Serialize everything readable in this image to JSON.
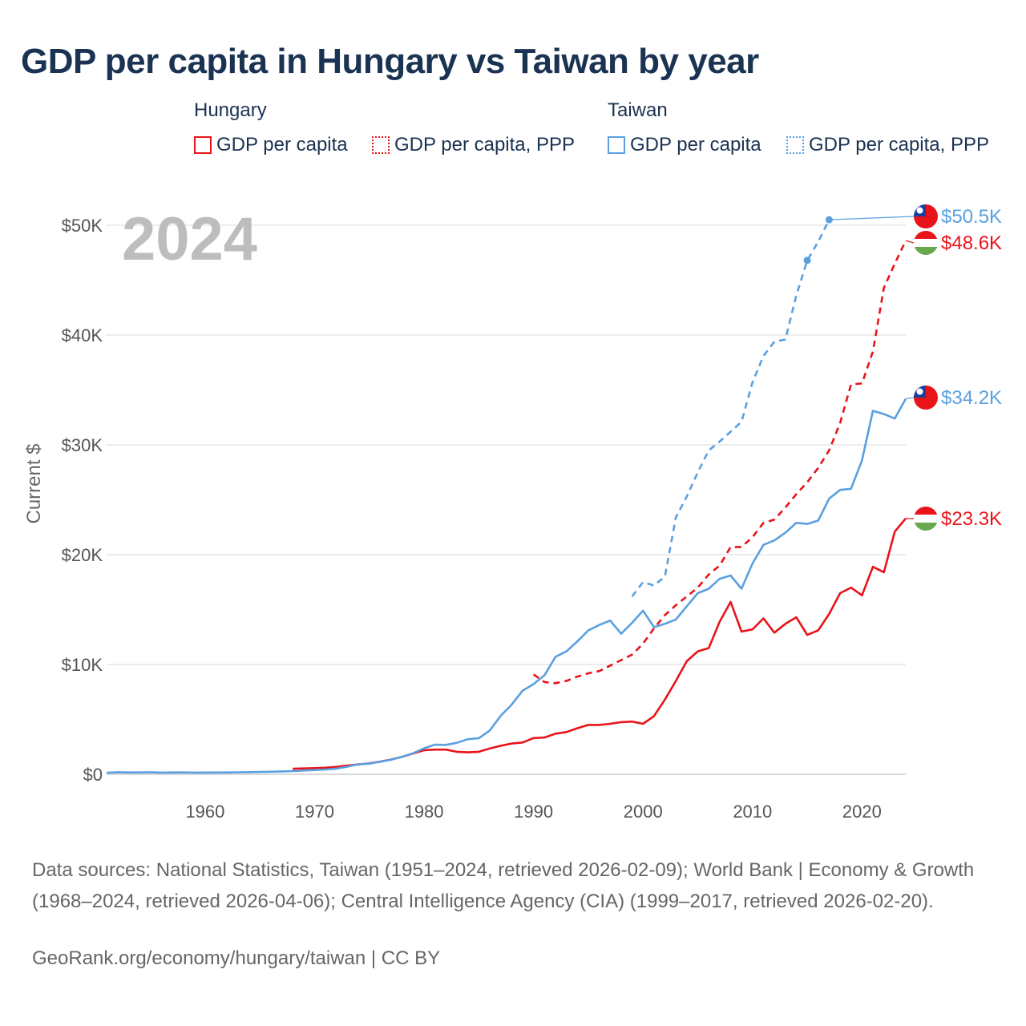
{
  "title": "GDP per capita in Hungary vs Taiwan by year",
  "legend": {
    "hungary": {
      "title": "Hungary",
      "gdp": "GDP per capita",
      "ppp": "GDP per capita, PPP"
    },
    "taiwan": {
      "title": "Taiwan",
      "gdp": "GDP per capita",
      "ppp": "GDP per capita, PPP"
    }
  },
  "colors": {
    "hungary": "#e8141a",
    "taiwan": "#5aa0e0",
    "grid": "#e6e6e6",
    "year": "#bdbdbd"
  },
  "footer": {
    "sources": "Data sources: National Statistics, Taiwan (1951–2024, retrieved 2026-02-09); World Bank | Economy & Growth (1968–2024, retrieved 2026-04-06); Central Intelligence Agency (CIA) (1999–2017, retrieved 2026-02-20).",
    "link": "GeoRank.org/economy/hungary/taiwan | CC BY"
  },
  "chart_data": {
    "type": "line",
    "title": "GDP per capita in Hungary vs Taiwan by year",
    "year_label": "2024",
    "xlabel": "",
    "ylabel": "Current $",
    "xlim": [
      1951,
      2024
    ],
    "ylim": [
      0,
      50000
    ],
    "x_ticks": [
      1960,
      1970,
      1980,
      1990,
      2000,
      2010,
      2020
    ],
    "x_tick_labels": [
      "1960",
      "1970",
      "1980",
      "1990",
      "2000",
      "2010",
      "2020"
    ],
    "y_ticks": [
      0,
      10000,
      20000,
      30000,
      40000,
      50000
    ],
    "y_tick_labels": [
      "$0",
      "$10K",
      "$20K",
      "$30K",
      "$40K",
      "$50K"
    ],
    "grid": true,
    "series": [
      {
        "name": "Hungary GDP per capita",
        "country": "hungary",
        "style": "solid",
        "end_label": "$23.3K",
        "x": [
          1968,
          1969,
          1970,
          1971,
          1972,
          1973,
          1974,
          1975,
          1976,
          1977,
          1978,
          1979,
          1980,
          1981,
          1982,
          1983,
          1984,
          1985,
          1986,
          1987,
          1988,
          1989,
          1990,
          1991,
          1992,
          1993,
          1994,
          1995,
          1996,
          1997,
          1998,
          1999,
          2000,
          2001,
          2002,
          2003,
          2004,
          2005,
          2006,
          2007,
          2008,
          2009,
          2010,
          2011,
          2012,
          2013,
          2014,
          2015,
          2016,
          2017,
          2018,
          2019,
          2020,
          2021,
          2022,
          2023,
          2024
        ],
        "y": [
          500,
          530,
          560,
          600,
          680,
          800,
          900,
          1000,
          1150,
          1350,
          1600,
          1900,
          2200,
          2250,
          2250,
          2050,
          2000,
          2050,
          2350,
          2600,
          2800,
          2900,
          3300,
          3350,
          3700,
          3850,
          4200,
          4500,
          4500,
          4600,
          4750,
          4800,
          4600,
          5300,
          6800,
          8500,
          10300,
          11200,
          11500,
          13900,
          15700,
          13000,
          13200,
          14200,
          12900,
          13700,
          14300,
          12700,
          13100,
          14600,
          16500,
          17000,
          16300,
          18900,
          18400,
          22100,
          23300
        ]
      },
      {
        "name": "Hungary GDP per capita, PPP",
        "country": "hungary",
        "style": "dashed",
        "end_label": "$48.6K",
        "x": [
          1990,
          1991,
          1992,
          1993,
          1994,
          1995,
          1996,
          1997,
          1998,
          1999,
          2000,
          2001,
          2002,
          2003,
          2004,
          2005,
          2006,
          2007,
          2008,
          2009,
          2010,
          2011,
          2012,
          2013,
          2014,
          2015,
          2016,
          2017,
          2018,
          2019,
          2020,
          2021,
          2022,
          2023,
          2024
        ],
        "y": [
          9100,
          8400,
          8300,
          8500,
          8900,
          9200,
          9400,
          9900,
          10400,
          10900,
          11900,
          13300,
          14500,
          15400,
          16200,
          17000,
          18200,
          19000,
          20700,
          20700,
          21600,
          22900,
          23200,
          24300,
          25500,
          26600,
          27900,
          29500,
          32000,
          35500,
          35600,
          38500,
          44300,
          46500,
          48600
        ]
      },
      {
        "name": "Taiwan GDP per capita",
        "country": "taiwan",
        "style": "solid",
        "end_label": "$34.2K",
        "x": [
          1951,
          1952,
          1953,
          1954,
          1955,
          1956,
          1957,
          1958,
          1959,
          1960,
          1961,
          1962,
          1963,
          1964,
          1965,
          1966,
          1967,
          1968,
          1969,
          1970,
          1971,
          1972,
          1973,
          1974,
          1975,
          1976,
          1977,
          1978,
          1979,
          1980,
          1981,
          1982,
          1983,
          1984,
          1985,
          1986,
          1987,
          1988,
          1989,
          1990,
          1991,
          1992,
          1993,
          1994,
          1995,
          1996,
          1997,
          1998,
          1999,
          2000,
          2001,
          2002,
          2003,
          2004,
          2005,
          2006,
          2007,
          2008,
          2009,
          2010,
          2011,
          2012,
          2013,
          2014,
          2015,
          2016,
          2017,
          2018,
          2019,
          2020,
          2021,
          2022,
          2023,
          2024
        ],
        "y": [
          140,
          190,
          170,
          170,
          190,
          150,
          170,
          170,
          150,
          160,
          160,
          170,
          180,
          200,
          210,
          230,
          260,
          300,
          340,
          390,
          440,
          520,
          690,
          920,
          970,
          1150,
          1330,
          1600,
          1920,
          2370,
          2700,
          2680,
          2870,
          3200,
          3290,
          3990,
          5330,
          6340,
          7620,
          8210,
          9020,
          10700,
          11200,
          12100,
          13100,
          13600,
          14000,
          12800,
          13800,
          14900,
          13400,
          13700,
          14100,
          15300,
          16500,
          16900,
          17800,
          18100,
          16900,
          19200,
          20900,
          21300,
          22000,
          22900,
          22800,
          23100,
          25100,
          25900,
          26000,
          28600,
          33100,
          32800,
          32400,
          34200
        ]
      },
      {
        "name": "Taiwan GDP per capita, PPP",
        "country": "taiwan",
        "style": "dashed",
        "end_label": "$50.5K",
        "x": [
          1999,
          2000,
          2001,
          2002,
          2003,
          2004,
          2005,
          2006,
          2007,
          2008,
          2009,
          2010,
          2011,
          2012,
          2013,
          2014,
          2015,
          2016,
          2017
        ],
        "y": [
          16200,
          17500,
          17200,
          18000,
          23400,
          25300,
          27500,
          29500,
          30300,
          31200,
          32100,
          35700,
          38100,
          39400,
          39600,
          43600,
          46800,
          48500,
          50500
        ]
      }
    ]
  }
}
